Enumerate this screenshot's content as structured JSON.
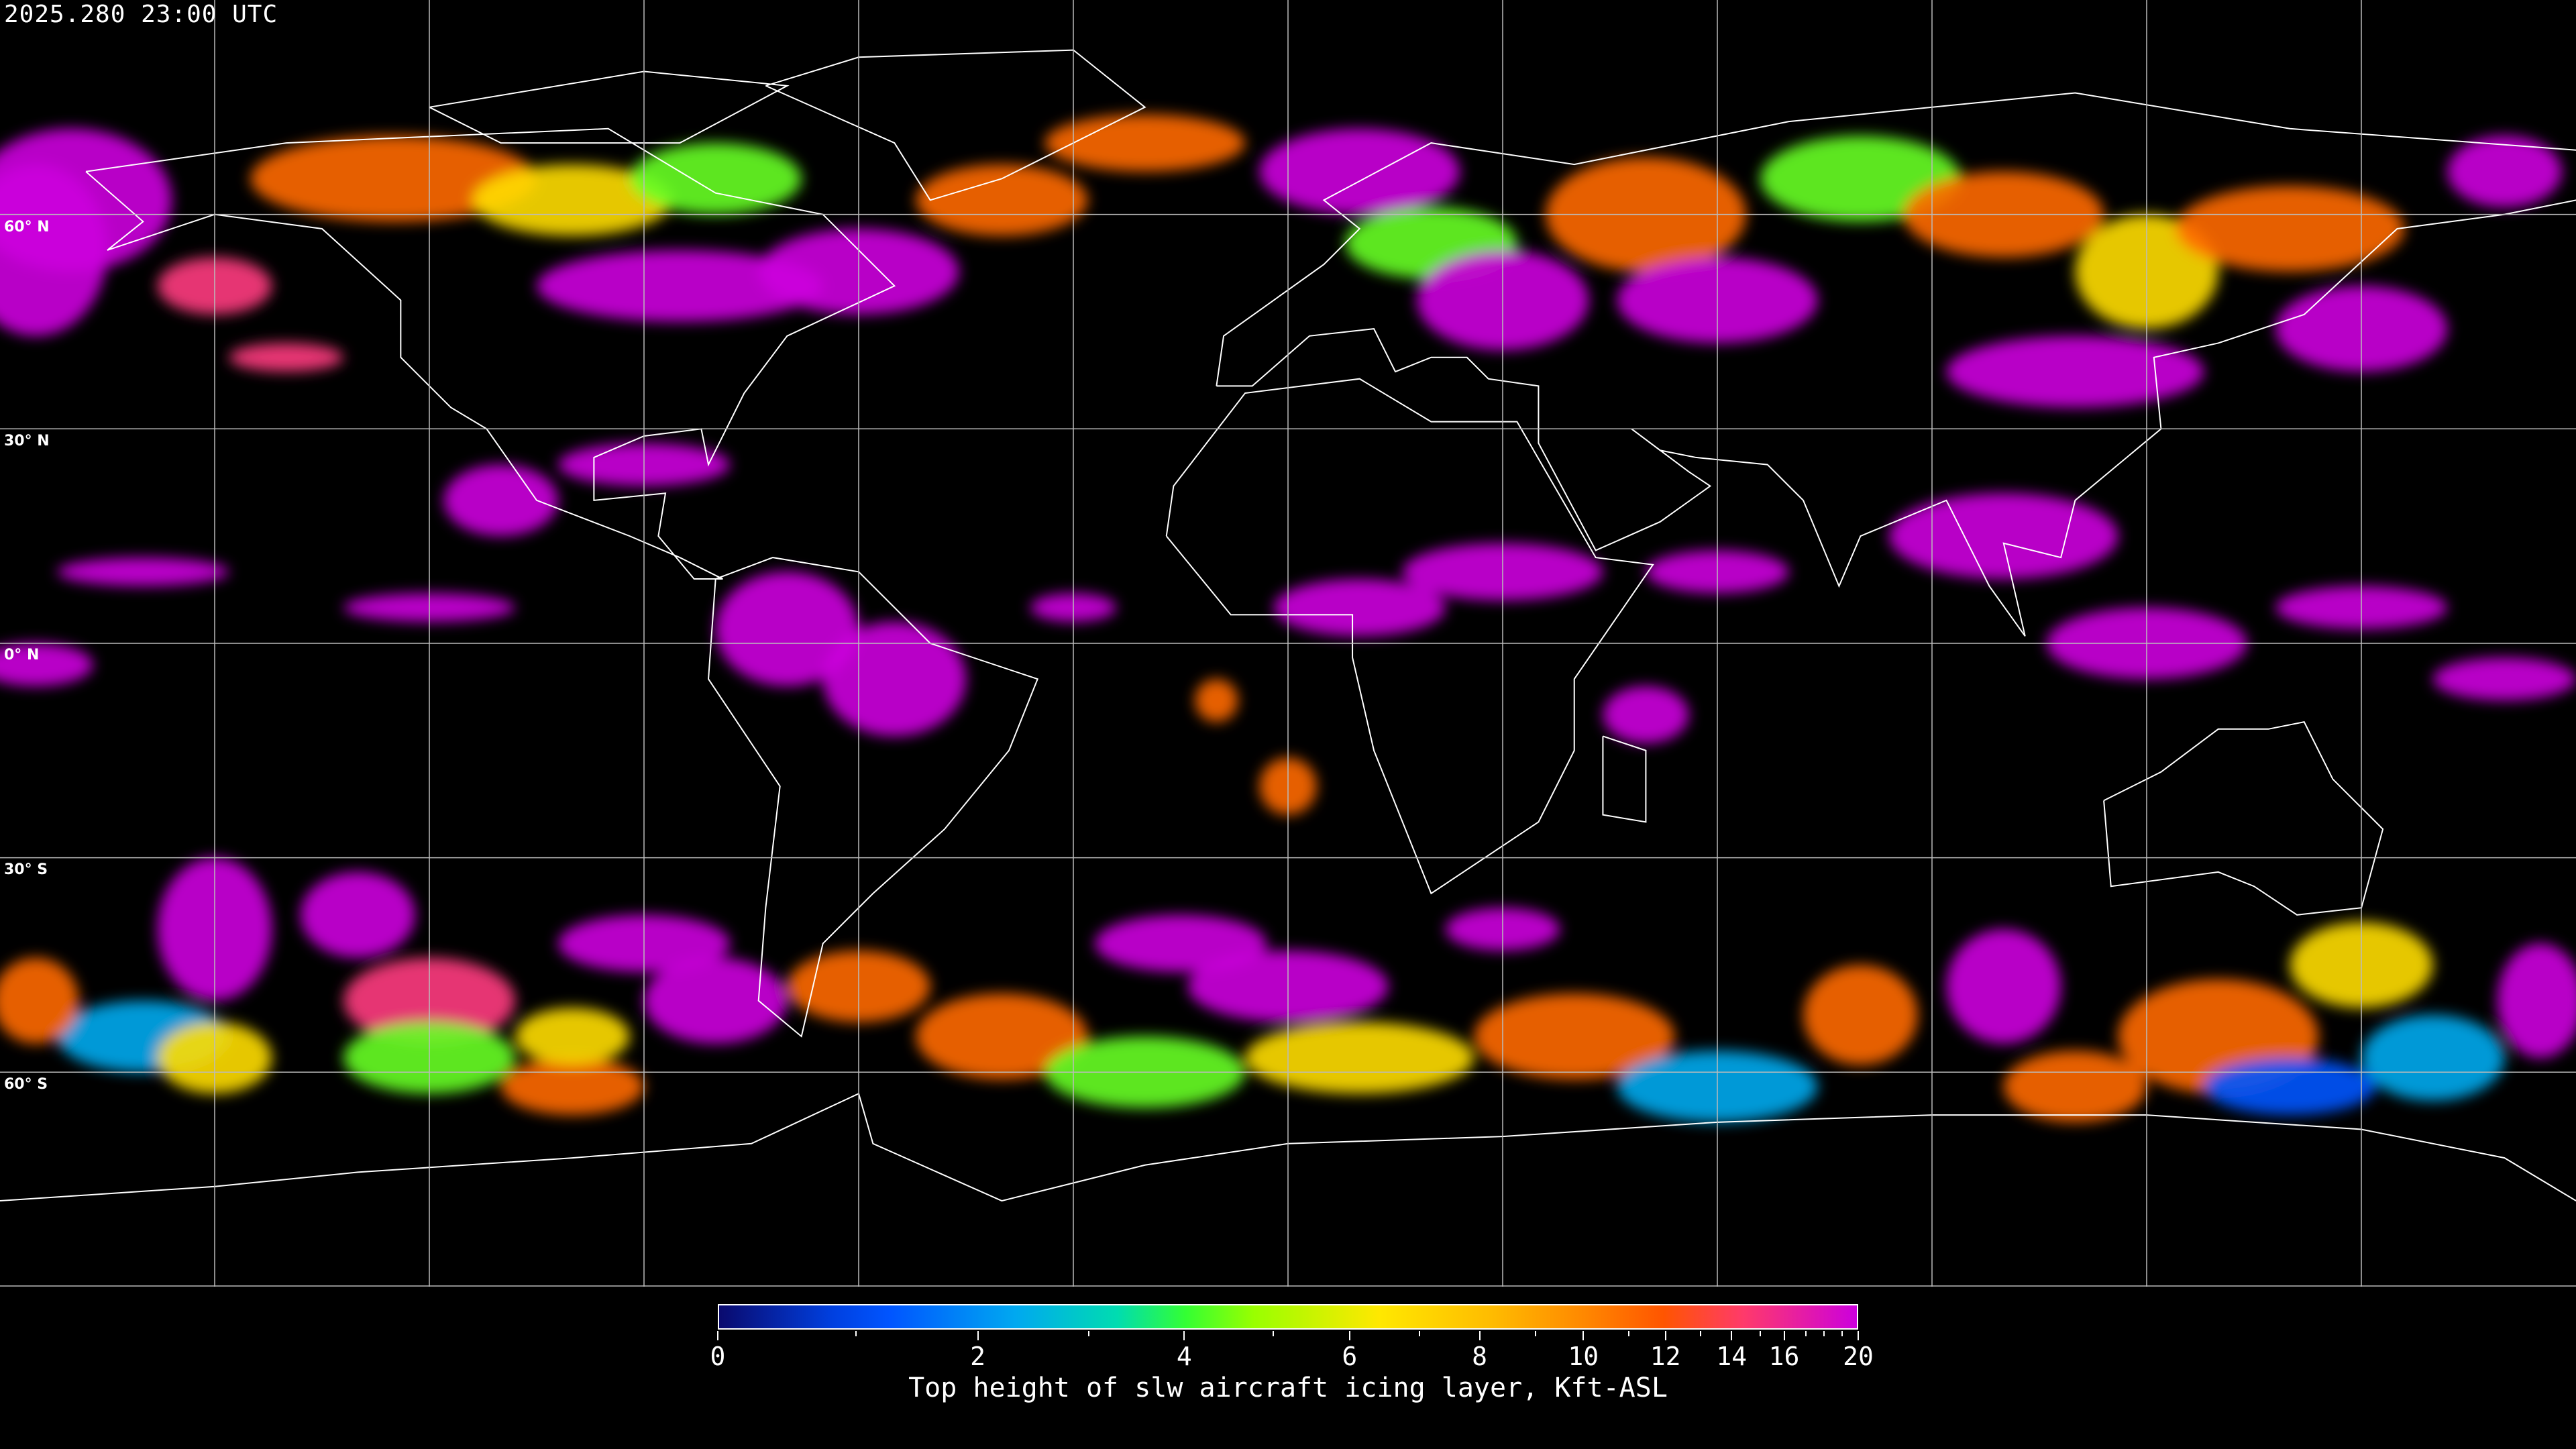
{
  "title": "2025.280 23:00 UTC",
  "latitude_labels": [
    "60° N",
    "30° N",
    "0° N",
    "30° S",
    "60° S"
  ],
  "colorbar": {
    "label": "Top height of slw aircraft icing layer, Kft-ASL",
    "min": 0,
    "max": 20,
    "tick_labels": [
      "0",
      "2",
      "4",
      "6",
      "8",
      "10",
      "12",
      "14",
      "16",
      "20"
    ],
    "minor_ticks": [
      1,
      3,
      5,
      7,
      9,
      11,
      13,
      15,
      17,
      18,
      19
    ],
    "colors": [
      "#0a0a6e",
      "#0055ff",
      "#00a8f0",
      "#00dcb0",
      "#33ff33",
      "#99ff00",
      "#ffe800",
      "#ffbb00",
      "#ff5500",
      "#ff3a6a",
      "#cc00dd"
    ]
  },
  "map": {
    "background": "#000000",
    "grid_color": "#bbbbbb",
    "coastline_color": "#ffffff"
  }
}
